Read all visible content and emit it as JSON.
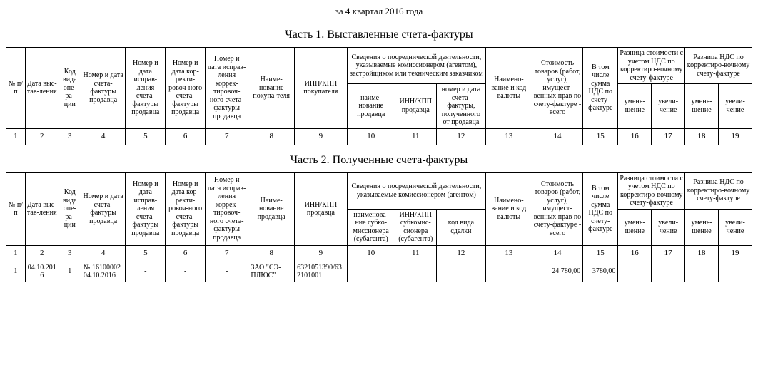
{
  "period": "за 4 квартал 2016 года",
  "part1": {
    "title": "Часть 1. Выставленные счета-фактуры",
    "headers": {
      "c1": "№ п/п",
      "c2": "Дата выс-тав-ления",
      "c3": "Код вида опе-ра-ции",
      "c4": "Номер и дата счета-фактуры продавца",
      "c5": "Номер и дата исправ-ления счета-фактуры продавца",
      "c6": "Номер и дата кор-ректи-ровоч-ного счета-фактуры продавца",
      "c7": "Номер и дата исправ-ления коррек-тировоч-ного счета-фактуры продавца",
      "c8": "Наиме-нование покупа-теля",
      "c9": "ИНН/КПП покупателя",
      "c10_12": "Сведения о посреднической деятельности, указываемые комиссионером (агентом), застройщиком или техническим заказчиком",
      "c10": "наиме-нование продавца",
      "c11": "ИНН/КПП продавца",
      "c12": "номер и дата счета-фактуры, полученного от продавца",
      "c13": "Наимено-вание и код валюты",
      "c14": "Стоимость товаров (работ, услуг), имущест-венных прав по счету-фактуре - всего",
      "c15": "В том числе сумма НДС по счету-фактуре",
      "c16_17": "Разница стоимости с учетом НДС по корректиро-вочному счету-фактуре",
      "c16": "умень-шение",
      "c17": "увели-чение",
      "c18_19": "Разница НДС по корректиро-вочному счету-фактуре",
      "c18": "умень-шение",
      "c19": "увели-чение"
    },
    "numrow": [
      "1",
      "2",
      "3",
      "4",
      "5",
      "6",
      "7",
      "8",
      "9",
      "10",
      "11",
      "12",
      "13",
      "14",
      "15",
      "16",
      "17",
      "18",
      "19"
    ]
  },
  "part2": {
    "title": "Часть 2. Полученные счета-фактуры",
    "headers": {
      "c1": "№ п/п",
      "c2": "Дата выс-тав-ления",
      "c3": "Код вида опе-ра-ции",
      "c4": "Номер и дата счета-фактуры продавца",
      "c5": "Номер и дата исправ-ления счета-фактуры продавца",
      "c6": "Номер и дата кор-ректи-ровоч-ного счета-фактуры продавца",
      "c7": "Номер и дата исправ-ления коррек-тировоч-ного счета-фактуры продавца",
      "c8": "Наиме-нование продавца",
      "c9": "ИНН/КПП продавца",
      "c10_12": "Сведения о посреднической деятельности, указываемые комиссионером (агентом)",
      "c10": "наименова-ние субко-миссионера (субагента)",
      "c11": "ИНН/КПП субкомис-сионера (субагента)",
      "c12": "код вида сделки",
      "c13": "Наимено-вание и код валюты",
      "c14": "Стоимость товаров (работ, услуг), имущест-венных прав по счету-фактуре - всего",
      "c15": "В том числе сумма НДС по счету-фактуре",
      "c16_17": "Разница стоимости с учетом НДС по корректиро-вочному счету-фактуре",
      "c16": "умень-шение",
      "c17": "увели-чение",
      "c18_19": "Разница НДС по корректиро-вочному счету-фактуре",
      "c18": "умень-шение",
      "c19": "увели-чение"
    },
    "numrow": [
      "1",
      "2",
      "3",
      "4",
      "5",
      "6",
      "7",
      "8",
      "9",
      "10",
      "11",
      "12",
      "13",
      "14",
      "15",
      "16",
      "17",
      "18",
      "19"
    ],
    "rows": [
      {
        "c1": "1",
        "c2": "04.10.2016",
        "c3": "1",
        "c4": "№ 16100002 04.10.2016",
        "c5": "-",
        "c6": "-",
        "c7": "-",
        "c8": "ЗАО \"СЭ-ПЛЮС\"",
        "c9": "6321051390/632101001",
        "c10": "",
        "c11": "",
        "c12": "",
        "c13": "",
        "c14": "24 780,00",
        "c15": "3780,00",
        "c16": "",
        "c17": "",
        "c18": "",
        "c19": ""
      }
    ]
  }
}
